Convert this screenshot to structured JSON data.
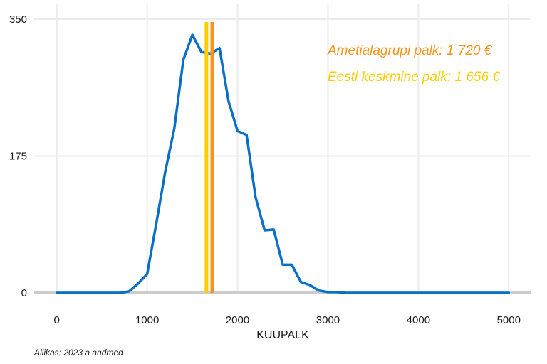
{
  "chart_data": {
    "type": "line",
    "xlabel": "KUUPALK",
    "ylabel": "",
    "xlim": [
      -250,
      5250
    ],
    "ylim": [
      0,
      350
    ],
    "x_ticks": [
      0,
      1000,
      2000,
      3000,
      4000,
      5000
    ],
    "x_tick_labels": [
      "0",
      "1000",
      "2000",
      "3000",
      "4000",
      "5000"
    ],
    "y_ticks": [
      0,
      175,
      350
    ],
    "y_tick_labels": [
      "0",
      "175",
      "350"
    ],
    "grid": true,
    "colors": {
      "line": "#0a6fc9",
      "occupation": "#f7941d",
      "estonia": "#ffcc00",
      "baseline": "#cccccc"
    },
    "series": [
      {
        "x": [
          0,
          100,
          200,
          300,
          400,
          500,
          600,
          700,
          800,
          900,
          1000,
          1100,
          1200,
          1300,
          1400,
          1500,
          1600,
          1700,
          1800,
          1900,
          2000,
          2100,
          2200,
          2300,
          2400,
          2500,
          2600,
          2700,
          2800,
          2900,
          3000,
          3100,
          3200,
          3300,
          3400,
          3500,
          4000,
          4500,
          5000
        ],
        "y": [
          0,
          0,
          0,
          0,
          0,
          0,
          0,
          0,
          2,
          12,
          24,
          88,
          155,
          210,
          298,
          330,
          308,
          306,
          313,
          245,
          207,
          202,
          122,
          80,
          81,
          36,
          36,
          14,
          10,
          3,
          1,
          1,
          0,
          0,
          0,
          0,
          0,
          0,
          0
        ]
      }
    ],
    "vlines": [
      {
        "x": 1720,
        "label": "Ametialagrupi palk: 1 720 €",
        "color": "#f7941d"
      },
      {
        "x": 1656,
        "label": "Eesti keskmine palk: 1 656 €",
        "color": "#ffcc00"
      }
    ]
  },
  "source": "Allikas: 2023 a andmed"
}
